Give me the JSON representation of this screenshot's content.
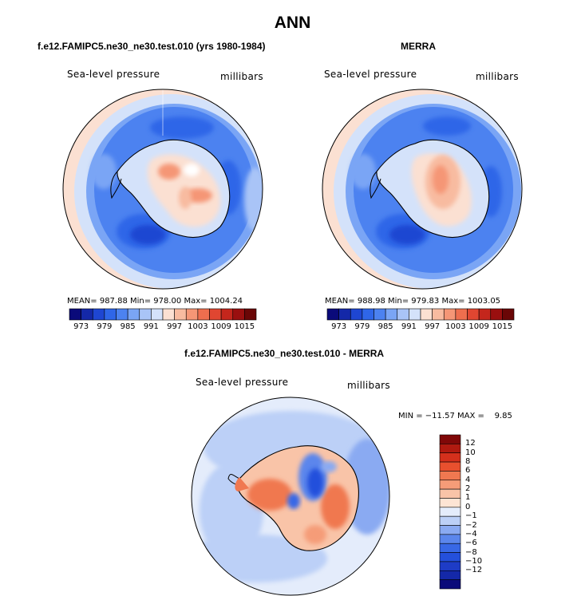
{
  "figure": {
    "title": "ANN",
    "variable": "Sea-level pressure",
    "units": "millibars"
  },
  "panels": [
    {
      "heading": "f.e12.FAMIPC5.ne30_ne30.test.010 (yrs 1980-1984)",
      "variable": "Sea-level pressure",
      "units": "millibars",
      "stats": "MEAN= 987.88   Min= 978.00   Max= 1004.24"
    },
    {
      "heading": "MERRA",
      "variable": "Sea-level pressure",
      "units": "millibars",
      "stats": "MEAN= 988.98   Min= 979.83   Max= 1003.05"
    },
    {
      "heading": "f.e12.FAMIPC5.ne30_ne30.test.010 - MERRA",
      "variable": "Sea-level pressure",
      "units": "millibars",
      "stats": "MIN = −11.57 MAX =    9.85"
    }
  ],
  "abs_colorbar": {
    "colors": [
      "#0a0a7a",
      "#1428a8",
      "#1e46d2",
      "#2f66e8",
      "#4c82f0",
      "#7aa5f5",
      "#a9c4f7",
      "#d4e2fa",
      "#fbe0d2",
      "#f8bba0",
      "#f59676",
      "#ee6e4e",
      "#e04631",
      "#c4261c",
      "#9a0f0f",
      "#6a0606"
    ],
    "labels": [
      "973",
      "979",
      "985",
      "991",
      "997",
      "1003",
      "1009",
      "1015"
    ]
  },
  "diff_colorbar": {
    "colors": [
      "#0a0a7a",
      "#1428a8",
      "#1e3cc6",
      "#2450dc",
      "#3868e6",
      "#5b86ec",
      "#8aaaf2",
      "#bcd0f7",
      "#e4ecfb",
      "#fde4d4",
      "#f9c4a8",
      "#f59c78",
      "#f07850",
      "#e8502e",
      "#d4301c",
      "#b01a10",
      "#800808"
    ],
    "labels": [
      "12",
      "10",
      "8",
      "6",
      "4",
      "2",
      "1",
      "0",
      "−1",
      "−2",
      "−4",
      "−6",
      "−8",
      "−10",
      "−12"
    ]
  }
}
